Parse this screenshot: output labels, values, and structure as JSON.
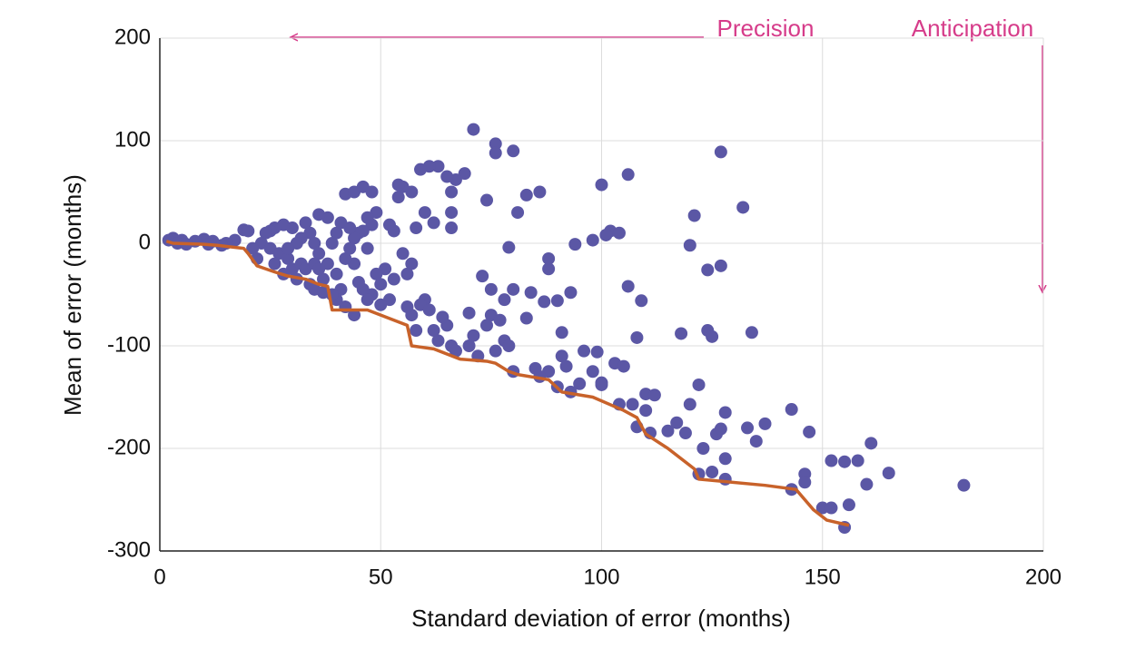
{
  "chart_data": {
    "type": "scatter",
    "x_label": "Standard deviation of error (months)",
    "y_label": "Mean of error (months)",
    "xlim": [
      0,
      200
    ],
    "ylim": [
      -300,
      200
    ],
    "xticks": [
      0,
      50,
      100,
      150,
      200
    ],
    "yticks": [
      -300,
      -200,
      -100,
      0,
      100,
      200
    ],
    "grid": true,
    "annotations": [
      {
        "text": "Precision"
      },
      {
        "text": "Anticipation"
      }
    ],
    "points": {
      "color": "#5b57a5",
      "x": [
        71,
        76,
        76,
        80,
        127,
        132,
        100,
        106,
        127,
        124,
        134,
        143,
        147,
        161,
        165,
        182,
        156,
        155,
        158,
        152,
        160,
        150,
        152,
        155,
        146,
        146,
        143,
        133,
        135,
        137,
        128,
        128,
        124,
        125,
        120,
        121,
        118,
        122,
        120,
        117,
        115,
        119,
        123,
        126,
        127,
        122,
        125,
        128,
        110,
        112,
        104,
        107,
        110,
        108,
        111,
        109,
        108,
        106,
        102,
        104,
        101,
        98,
        94,
        93,
        90,
        91,
        96,
        99,
        98,
        103,
        105,
        100,
        100,
        95,
        93,
        90,
        88,
        85,
        86,
        91,
        92,
        84,
        83,
        87,
        88,
        88,
        83,
        86,
        81,
        79,
        80,
        78,
        75,
        73,
        74,
        75,
        77,
        78,
        79,
        80,
        76,
        72,
        70,
        71,
        70,
        74,
        69,
        67,
        65,
        63,
        61,
        59,
        66,
        66,
        66,
        60,
        62,
        58,
        65,
        63,
        62,
        66,
        67,
        64,
        60,
        59,
        61,
        58,
        57,
        56,
        57,
        55,
        54,
        54,
        52,
        53,
        55,
        57,
        56,
        53,
        51,
        50,
        52,
        50,
        48,
        46,
        47,
        49,
        45,
        44,
        42,
        43,
        40,
        41,
        40,
        42,
        44,
        38,
        37,
        36,
        35,
        34,
        33,
        38,
        36,
        39,
        40,
        42,
        44,
        46,
        48,
        49,
        48,
        46,
        45,
        44,
        47,
        30,
        28,
        26,
        25,
        24,
        23,
        25,
        27,
        29,
        30,
        32,
        33,
        31,
        34,
        35,
        37,
        39,
        28,
        26,
        22,
        21,
        19,
        20,
        17,
        15,
        12,
        10,
        8,
        5,
        3,
        2,
        4,
        6,
        11,
        14,
        32,
        31,
        29,
        35,
        36,
        41,
        43,
        47
      ],
      "y": [
        111,
        97,
        88,
        90,
        89,
        35,
        57,
        67,
        -22,
        -26,
        -87,
        -162,
        -184,
        -195,
        -224,
        -236,
        -255,
        -213,
        -212,
        -212,
        -235,
        -258,
        -258,
        -277,
        -225,
        -233,
        -240,
        -180,
        -193,
        -176,
        -165,
        -210,
        -85,
        -91,
        -2,
        27,
        -88,
        -138,
        -157,
        -175,
        -183,
        -185,
        -200,
        -186,
        -181,
        -225,
        -223,
        -230,
        -147,
        -148,
        -157,
        -157,
        -163,
        -179,
        -185,
        -56,
        -92,
        -42,
        12,
        10,
        8,
        3,
        -1,
        -48,
        -56,
        -87,
        -105,
        -106,
        -125,
        -117,
        -120,
        -136,
        -138,
        -137,
        -145,
        -140,
        -125,
        -122,
        -130,
        -110,
        -120,
        -48,
        -73,
        -57,
        -25,
        -15,
        47,
        50,
        30,
        -4,
        -45,
        -55,
        -45,
        -32,
        -80,
        -70,
        -75,
        -95,
        -100,
        -125,
        -105,
        -110,
        -68,
        -90,
        -100,
        42,
        68,
        62,
        65,
        75,
        75,
        72,
        50,
        30,
        15,
        30,
        20,
        15,
        -80,
        -95,
        -85,
        -100,
        -105,
        -72,
        -55,
        -60,
        -65,
        -85,
        -70,
        -62,
        50,
        55,
        57,
        45,
        18,
        12,
        -10,
        -20,
        -30,
        -35,
        -25,
        -40,
        -55,
        -60,
        -50,
        -45,
        -55,
        -30,
        -38,
        -20,
        -15,
        -5,
        -30,
        -45,
        -55,
        -62,
        -70,
        -20,
        -35,
        -10,
        0,
        10,
        20,
        25,
        28,
        0,
        10,
        48,
        50,
        55,
        50,
        30,
        18,
        12,
        10,
        5,
        -5,
        15,
        18,
        15,
        12,
        10,
        0,
        -5,
        -10,
        -15,
        -25,
        -20,
        -25,
        -35,
        -40,
        -45,
        -48,
        -50,
        -30,
        -20,
        -15,
        -5,
        13,
        12,
        3,
        0,
        2,
        4,
        2,
        3,
        5,
        3,
        0,
        -1,
        -1,
        -2,
        5,
        0,
        -5,
        -20,
        -25,
        20,
        15,
        25
      ]
    },
    "frontier": {
      "color": "#c8622a",
      "x": [
        1.5,
        3,
        10,
        13,
        19,
        20,
        22,
        26,
        29,
        33,
        36,
        38,
        39,
        47,
        50,
        56,
        57,
        62,
        68,
        74,
        76,
        79,
        81,
        88,
        91,
        98,
        105,
        108,
        110,
        115,
        121,
        122,
        137,
        144,
        148,
        151,
        156
      ],
      "y": [
        2,
        0,
        -1,
        -2,
        -5,
        -10,
        -22,
        -28,
        -32,
        -35,
        -40,
        -42,
        -65,
        -65,
        -70,
        -80,
        -100,
        -103,
        -113,
        -115,
        -117,
        -125,
        -128,
        -133,
        -145,
        -150,
        -163,
        -170,
        -186,
        -200,
        -220,
        -230,
        -236,
        -240,
        -260,
        -270,
        -275
      ]
    }
  }
}
